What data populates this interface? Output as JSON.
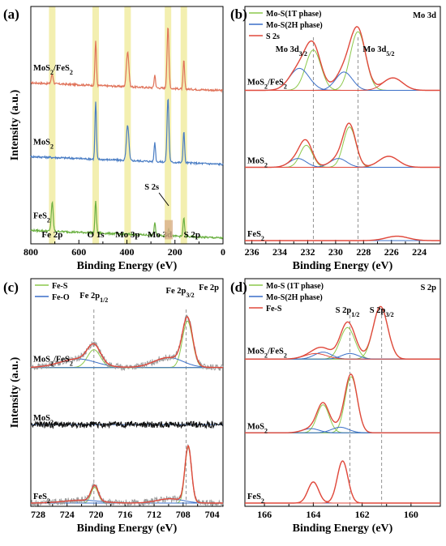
{
  "colors": {
    "survey_mos2_fes2": "#e0735a",
    "survey_mos2": "#4a7dc4",
    "survey_fes2": "#6ab041",
    "fit_1t": "#8cc84b",
    "fit_2h": "#3a6fc8",
    "fit_total": "#e0493c",
    "fe_s": "#8cc84b",
    "fe_o": "#3a6fc8",
    "raw_grey": "#9a9a9a",
    "raw_black": "#111111",
    "band": "#f3efb0",
    "s2s_box": "#d9b08c"
  },
  "chart_data": [
    {
      "type": "line",
      "panel": "(a)",
      "xlabel": "Binding Energy (eV)",
      "ylabel": "Intensity (a.u.)",
      "xlim": [
        800,
        0
      ],
      "xticks": [
        "800",
        "600",
        "400",
        "200",
        "0"
      ],
      "series": [
        {
          "name": "MoS2/FeS2",
          "display": [
            "MoS",
            "2",
            "/FeS",
            "2"
          ],
          "offset": 2.3,
          "peaks": [
            {
              "x": 711,
              "h": 0.15,
              "w": 4
            },
            {
              "x": 530,
              "h": 0.7,
              "w": 3
            },
            {
              "x": 397,
              "h": 0.55,
              "w": 5
            },
            {
              "x": 284,
              "h": 0.2,
              "w": 3
            },
            {
              "x": 229,
              "h": 0.95,
              "w": 4
            },
            {
              "x": 163,
              "h": 0.45,
              "w": 3
            }
          ]
        },
        {
          "name": "MoS2",
          "display": [
            "MoS",
            "2"
          ],
          "offset": 1.15,
          "peaks": [
            {
              "x": 530,
              "h": 0.9,
              "w": 3
            },
            {
              "x": 397,
              "h": 0.55,
              "w": 5
            },
            {
              "x": 284,
              "h": 0.3,
              "w": 3
            },
            {
              "x": 229,
              "h": 1.0,
              "w": 4
            },
            {
              "x": 163,
              "h": 0.5,
              "w": 3
            }
          ]
        },
        {
          "name": "FeS2",
          "display": [
            "FeS",
            "2"
          ],
          "offset": 0.0,
          "peaks": [
            {
              "x": 711,
              "h": 0.45,
              "w": 4
            },
            {
              "x": 530,
              "h": 0.5,
              "w": 3
            },
            {
              "x": 284,
              "h": 0.2,
              "w": 3
            },
            {
              "x": 226,
              "h": 0.12,
              "w": 3
            },
            {
              "x": 163,
              "h": 0.3,
              "w": 3
            }
          ]
        }
      ],
      "bands": [
        {
          "label": "Fe 2p",
          "x": 711
        },
        {
          "label": "O 1s",
          "x": 530
        },
        {
          "label": "Mo 3p",
          "x": 397
        },
        {
          "label": "Mo 3d",
          "x": 229
        },
        {
          "label": "S 2p",
          "x": 163
        }
      ],
      "annotations": [
        {
          "text": "S 2s",
          "x": 226
        }
      ]
    },
    {
      "type": "line",
      "panel": "(b)",
      "corner": "Mo 3d",
      "xlabel": "Binding Energy (eV)",
      "xlim": [
        236.5,
        222.5
      ],
      "xticks": [
        "236",
        "234",
        "232",
        "230",
        "228",
        "226",
        "224"
      ],
      "legend": [
        {
          "text": "Mo-S(1T phase)",
          "key": "fit_1t"
        },
        {
          "text": "Mo-S(2H phase)",
          "key": "fit_2h"
        },
        {
          "text": "S 2s",
          "key": "fit_total"
        }
      ],
      "peak_labels": [
        {
          "main": "Mo 3d",
          "sub": "3/2",
          "x": 231.8
        },
        {
          "main": "Mo 3d",
          "sub": "5/2",
          "x": 228.4
        }
      ],
      "ref_lines": [
        231.6,
        228.4
      ],
      "series": [
        {
          "name": "MoS2/FeS2",
          "display": [
            "MoS",
            "2",
            "/FeS",
            "2"
          ],
          "offset": 2.05,
          "components": [
            {
              "type": "fit_1t",
              "peaks": [
                {
                  "x": 231.6,
                  "h": 0.55,
                  "w": 0.55
                },
                {
                  "x": 228.4,
                  "h": 0.8,
                  "w": 0.55
                }
              ]
            },
            {
              "type": "fit_2h",
              "peaks": [
                {
                  "x": 232.6,
                  "h": 0.3,
                  "w": 0.7
                },
                {
                  "x": 229.4,
                  "h": 0.25,
                  "w": 0.6
                }
              ]
            },
            {
              "type": "fit_total",
              "peaks": [
                {
                  "x": 225.9,
                  "h": 0.17,
                  "w": 0.7
                }
              ]
            }
          ]
        },
        {
          "name": "MoS2",
          "display": [
            "MoS",
            "2"
          ],
          "offset": 1.0,
          "components": [
            {
              "type": "fit_1t",
              "peaks": [
                {
                  "x": 232.1,
                  "h": 0.3,
                  "w": 0.45
                },
                {
                  "x": 229.0,
                  "h": 0.55,
                  "w": 0.45
                }
              ]
            },
            {
              "type": "fit_2h",
              "peaks": [
                {
                  "x": 232.7,
                  "h": 0.12,
                  "w": 0.6
                },
                {
                  "x": 229.8,
                  "h": 0.12,
                  "w": 0.6
                }
              ]
            },
            {
              "type": "fit_total",
              "peaks": [
                {
                  "x": 226.2,
                  "h": 0.15,
                  "w": 0.7
                }
              ]
            }
          ]
        },
        {
          "name": "FeS2",
          "display": [
            "FeS",
            "2"
          ],
          "offset": 0.0,
          "components": [
            {
              "type": "fit_total",
              "peaks": [
                {
                  "x": 225.6,
                  "h": 0.06,
                  "w": 0.8
                }
              ]
            }
          ]
        }
      ]
    },
    {
      "type": "line",
      "panel": "(c)",
      "corner": "Fe 2p",
      "xlabel": "Binding Energy (eV)",
      "ylabel": "Intensity (a.u.)",
      "xlim": [
        729,
        702.5
      ],
      "xticks": [
        "728",
        "724",
        "720",
        "716",
        "712",
        "708",
        "704"
      ],
      "legend": [
        {
          "text": "Fe-S",
          "key": "fe_s"
        },
        {
          "text": "Fe-O",
          "key": "fe_o"
        }
      ],
      "peak_labels": [
        {
          "main": "Fe 2p",
          "sub": "1/2",
          "x": 720.3
        },
        {
          "main": "Fe 2p",
          "sub": "3/2",
          "x": 707.3
        }
      ],
      "ref_lines": [
        720.3,
        707.6
      ],
      "series": [
        {
          "name": "MoS2/FeS2",
          "display": [
            "MoS",
            "2",
            "/FeS",
            "2"
          ],
          "offset": 1.9,
          "components": [
            {
              "type": "fe_s",
              "peaks": [
                {
                  "x": 720.3,
                  "h": 0.25,
                  "w": 0.9
                },
                {
                  "x": 707.4,
                  "h": 0.65,
                  "w": 0.7
                }
              ]
            },
            {
              "type": "fe_o",
              "peaks": [
                {
                  "x": 722.5,
                  "h": 0.12,
                  "w": 2.5
                },
                {
                  "x": 710.0,
                  "h": 0.14,
                  "w": 2.0
                }
              ]
            }
          ]
        },
        {
          "name": "MoS2",
          "display": [
            "MoS",
            "2"
          ],
          "offset": 1.1,
          "flat": true,
          "components": []
        },
        {
          "name": "FeS2",
          "display": [
            "FeS",
            "2"
          ],
          "offset": 0.0,
          "components": [
            {
              "type": "fe_s",
              "peaks": [
                {
                  "x": 720.2,
                  "h": 0.22,
                  "w": 0.5
                },
                {
                  "x": 707.3,
                  "h": 0.78,
                  "w": 0.45
                }
              ]
            },
            {
              "type": "fe_o",
              "peaks": [
                {
                  "x": 722.0,
                  "h": 0.04,
                  "w": 2.5
                },
                {
                  "x": 709.8,
                  "h": 0.06,
                  "w": 1.8
                }
              ]
            }
          ]
        }
      ]
    },
    {
      "type": "line",
      "panel": "(d)",
      "corner": "S 2p",
      "xlabel": "Binding Energy (eV)",
      "xlim": [
        166.8,
        158.8
      ],
      "xticks": [
        "166",
        "164",
        "162",
        "160"
      ],
      "legend": [
        {
          "text": "Mo-S (1T phase)",
          "key": "fit_1t"
        },
        {
          "text": "Mo-S(2H phase)",
          "key": "fit_2h"
        },
        {
          "text": "Fe-S",
          "key": "fit_total"
        }
      ],
      "peak_labels": [
        {
          "main": "S 2p",
          "sub": "1/2",
          "x": 162.6
        },
        {
          "main": "S 2p",
          "sub": "3/2",
          "x": 161.2
        }
      ],
      "ref_lines": [
        162.5,
        161.2
      ],
      "series": [
        {
          "name": "MoS2/FeS2",
          "display": [
            "MoS",
            "2",
            "/FeS",
            "2"
          ],
          "offset": 2.05,
          "components": [
            {
              "type": "fit_1t",
              "peaks": [
                {
                  "x": 162.6,
                  "h": 0.45,
                  "w": 0.3
                },
                {
                  "x": 161.25,
                  "h": 0.75,
                  "w": 0.3
                }
              ]
            },
            {
              "type": "fit_2h",
              "peaks": [
                {
                  "x": 163.6,
                  "h": 0.1,
                  "w": 0.35
                },
                {
                  "x": 162.5,
                  "h": 0.08,
                  "w": 0.35
                }
              ]
            },
            {
              "type": "fit_total",
              "peaks": [
                {
                  "x": 163.9,
                  "h": 0.08,
                  "w": 0.45
                }
              ]
            }
          ]
        },
        {
          "name": "MoS2",
          "display": [
            "MoS",
            "2"
          ],
          "offset": 1.0,
          "components": [
            {
              "type": "fit_1t",
              "peaks": [
                {
                  "x": 163.6,
                  "h": 0.4,
                  "w": 0.25
                },
                {
                  "x": 162.45,
                  "h": 0.8,
                  "w": 0.25
                }
              ]
            },
            {
              "type": "fit_2h",
              "peaks": [
                {
                  "x": 164.1,
                  "h": 0.06,
                  "w": 0.35
                },
                {
                  "x": 162.9,
                  "h": 0.08,
                  "w": 0.35
                }
              ]
            }
          ]
        },
        {
          "name": "FeS2",
          "display": [
            "FeS",
            "2"
          ],
          "offset": 0.0,
          "components": [
            {
              "type": "fit_total",
              "peaks": [
                {
                  "x": 164.0,
                  "h": 0.3,
                  "w": 0.22
                },
                {
                  "x": 162.8,
                  "h": 0.6,
                  "w": 0.22
                }
              ]
            }
          ]
        }
      ]
    }
  ]
}
